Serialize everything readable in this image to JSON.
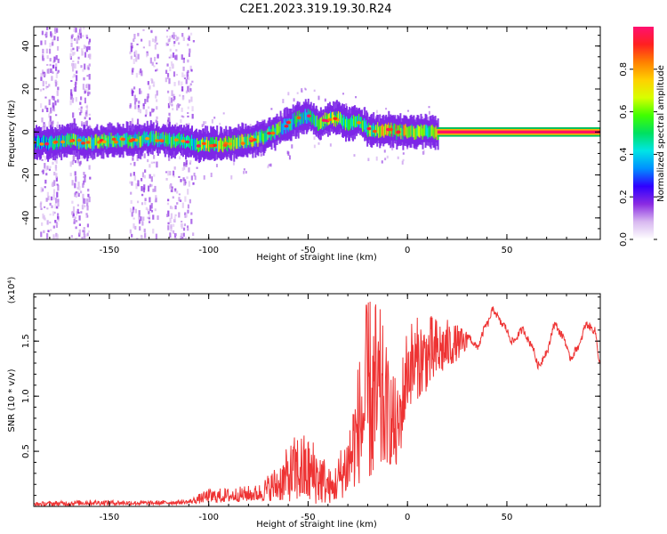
{
  "title": "C2E1.2023.319.19.30.R24",
  "chart_data": [
    {
      "type": "heatmap",
      "xlabel": "Height of straight line (km)",
      "ylabel": "Frequency (Hz)",
      "xlim": [
        -188,
        97
      ],
      "ylim": [
        -50,
        49
      ],
      "xticks": [
        -150,
        -100,
        -50,
        0,
        50
      ],
      "yticks": [
        -40,
        -20,
        0,
        20,
        40
      ],
      "colorbar": {
        "label": "Normalized spectral amplitude",
        "range": [
          0,
          1
        ],
        "ticks": [
          "0.0",
          "0.2",
          "0.4",
          "0.6",
          "0.8"
        ],
        "colors": [
          "#ffffff",
          "#d8b8f0",
          "#8a2be2",
          "#2f00ff",
          "#0090ff",
          "#00e5e5",
          "#00e060",
          "#40ff00",
          "#d8ff00",
          "#ffd000",
          "#ff8000",
          "#ff2020",
          "#ff1070"
        ]
      },
      "ridge": [
        {
          "x": -188,
          "y": -5,
          "a": 0.4
        },
        {
          "x": -180,
          "y": -5,
          "a": 0.45
        },
        {
          "x": -170,
          "y": -4,
          "a": 0.55
        },
        {
          "x": -160,
          "y": -5,
          "a": 0.6
        },
        {
          "x": -150,
          "y": -4,
          "a": 0.55
        },
        {
          "x": -140,
          "y": -4,
          "a": 0.55
        },
        {
          "x": -130,
          "y": -3,
          "a": 0.6
        },
        {
          "x": -120,
          "y": -4,
          "a": 0.55
        },
        {
          "x": -112,
          "y": -4,
          "a": 0.45
        },
        {
          "x": -105,
          "y": -6,
          "a": 0.6
        },
        {
          "x": -95,
          "y": -6,
          "a": 0.65
        },
        {
          "x": -85,
          "y": -5,
          "a": 0.65
        },
        {
          "x": -75,
          "y": -3,
          "a": 0.6
        },
        {
          "x": -65,
          "y": 1,
          "a": 0.55
        },
        {
          "x": -58,
          "y": 5,
          "a": 0.5
        },
        {
          "x": -50,
          "y": 8,
          "a": 0.45
        },
        {
          "x": -45,
          "y": 4,
          "a": 0.55
        },
        {
          "x": -40,
          "y": 6,
          "a": 0.6
        },
        {
          "x": -35,
          "y": 6,
          "a": 0.6
        },
        {
          "x": -30,
          "y": 4,
          "a": 0.55
        },
        {
          "x": -25,
          "y": 5,
          "a": 0.5
        },
        {
          "x": -20,
          "y": 1,
          "a": 0.6
        },
        {
          "x": -15,
          "y": 1,
          "a": 0.7
        },
        {
          "x": -10,
          "y": 1,
          "a": 0.75
        },
        {
          "x": -5,
          "y": 0,
          "a": 0.75
        },
        {
          "x": 0,
          "y": 0,
          "a": 0.7
        },
        {
          "x": 5,
          "y": 0,
          "a": 0.65
        },
        {
          "x": 10,
          "y": 0,
          "a": 0.6
        },
        {
          "x": 15,
          "y": 0,
          "a": 0.7
        },
        {
          "x": 20,
          "y": 0,
          "a": 1.0
        },
        {
          "x": 50,
          "y": 0,
          "a": 1.0
        },
        {
          "x": 97,
          "y": 0,
          "a": 1.0
        }
      ]
    },
    {
      "type": "line",
      "xlabel": "Height of straight line (km)",
      "ylabel": "SNR (10 * v/v)",
      "y_scale_label": "(x10⁴)",
      "xlim": [
        -188,
        97
      ],
      "ylim": [
        0,
        1.93
      ],
      "xticks": [
        -150,
        -100,
        -50,
        0,
        50
      ],
      "yticks": [
        "0.5",
        "1.0",
        "1.5"
      ],
      "color": "#ee3333",
      "envelope": [
        {
          "x": -188,
          "lo": 0.0,
          "hi": 0.04
        },
        {
          "x": -160,
          "lo": 0.01,
          "hi": 0.06
        },
        {
          "x": -130,
          "lo": 0.01,
          "hi": 0.05
        },
        {
          "x": -110,
          "lo": 0.02,
          "hi": 0.06
        },
        {
          "x": -100,
          "lo": 0.03,
          "hi": 0.16
        },
        {
          "x": -90,
          "lo": 0.04,
          "hi": 0.17
        },
        {
          "x": -75,
          "lo": 0.05,
          "hi": 0.2
        },
        {
          "x": -65,
          "lo": 0.05,
          "hi": 0.4
        },
        {
          "x": -55,
          "lo": 0.04,
          "hi": 0.7
        },
        {
          "x": -45,
          "lo": 0.02,
          "hi": 0.6
        },
        {
          "x": -38,
          "lo": 0.03,
          "hi": 0.3
        },
        {
          "x": -30,
          "lo": 0.1,
          "hi": 0.75
        },
        {
          "x": -25,
          "lo": 0.2,
          "hi": 1.3
        },
        {
          "x": -20,
          "lo": 0.25,
          "hi": 1.93
        },
        {
          "x": -15,
          "lo": 0.2,
          "hi": 1.93
        },
        {
          "x": -10,
          "lo": 0.4,
          "hi": 1.4
        },
        {
          "x": -5,
          "lo": 0.3,
          "hi": 1.1
        },
        {
          "x": 0,
          "lo": 0.9,
          "hi": 1.7
        },
        {
          "x": 10,
          "lo": 1.05,
          "hi": 1.75
        },
        {
          "x": 20,
          "lo": 1.25,
          "hi": 1.7
        },
        {
          "x": 30,
          "lo": 1.4,
          "hi": 1.6
        }
      ],
      "smooth": [
        {
          "x": 30,
          "y": 1.55
        },
        {
          "x": 35,
          "y": 1.45
        },
        {
          "x": 40,
          "y": 1.65
        },
        {
          "x": 43,
          "y": 1.78
        },
        {
          "x": 48,
          "y": 1.65
        },
        {
          "x": 53,
          "y": 1.5
        },
        {
          "x": 58,
          "y": 1.6
        },
        {
          "x": 62,
          "y": 1.48
        },
        {
          "x": 66,
          "y": 1.28
        },
        {
          "x": 70,
          "y": 1.4
        },
        {
          "x": 74,
          "y": 1.65
        },
        {
          "x": 78,
          "y": 1.55
        },
        {
          "x": 82,
          "y": 1.35
        },
        {
          "x": 86,
          "y": 1.45
        },
        {
          "x": 90,
          "y": 1.65
        },
        {
          "x": 94,
          "y": 1.6
        },
        {
          "x": 97,
          "y": 1.3
        }
      ]
    }
  ]
}
